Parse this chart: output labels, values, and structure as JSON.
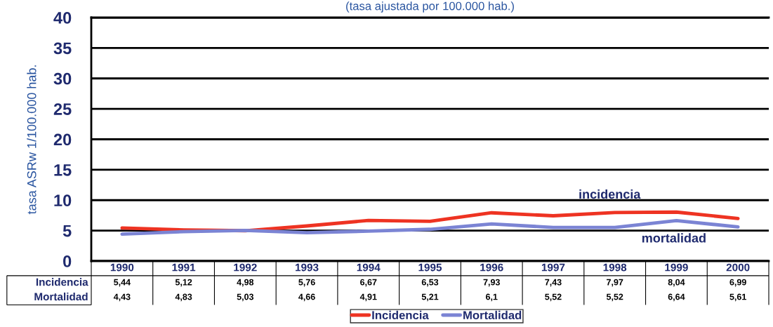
{
  "chart_data": {
    "type": "line",
    "subtitle": "(tasa ajustada por 100.000 hab.)",
    "ylabel": "tasa ASRw 1/100.000 hab.",
    "categories": [
      "1990",
      "1991",
      "1992",
      "1993",
      "1994",
      "1995",
      "1996",
      "1997",
      "1998",
      "1999",
      "2000"
    ],
    "series": [
      {
        "name": "Incidencia",
        "color": "#ee3322",
        "values": [
          5.44,
          5.12,
          4.98,
          5.76,
          6.67,
          6.53,
          7.93,
          7.43,
          7.97,
          8.04,
          6.99
        ],
        "value_labels": [
          "5,44",
          "5,12",
          "4,98",
          "5,76",
          "6,67",
          "6,53",
          "7,93",
          "7,43",
          "7,97",
          "8,04",
          "6,99"
        ]
      },
      {
        "name": "Mortalidad",
        "color": "#7b84d4",
        "values": [
          4.43,
          4.83,
          5.03,
          4.66,
          4.91,
          5.21,
          6.1,
          5.52,
          5.52,
          6.64,
          5.61
        ],
        "value_labels": [
          "4,43",
          "4,83",
          "5,03",
          "4,66",
          "4,91",
          "5,21",
          "6,1",
          "5,52",
          "5,52",
          "6,64",
          "5,61"
        ]
      }
    ],
    "annotations": [
      "incidencia",
      "mortalidad"
    ],
    "ylim": [
      0,
      40
    ],
    "yticks": [
      0,
      5,
      10,
      15,
      20,
      25,
      30,
      35,
      40
    ],
    "grid": "y",
    "legend": "bottom",
    "marker": "none",
    "line_style": "solid"
  }
}
